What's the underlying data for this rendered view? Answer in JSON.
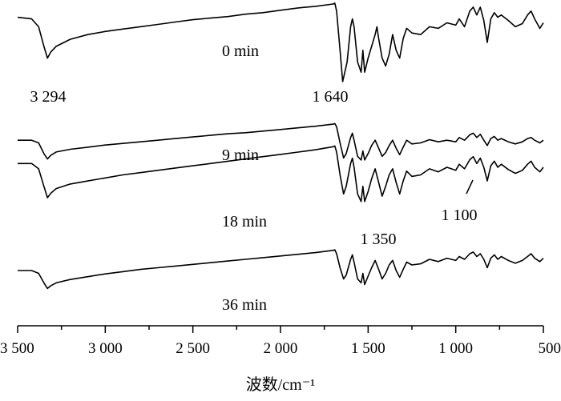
{
  "chart_data": {
    "type": "line",
    "xlabel": "波数/cm⁻¹",
    "ylabel": "",
    "xlim": [
      3500,
      500
    ],
    "x_ticks": [
      3500,
      3000,
      2500,
      2000,
      1500,
      1000,
      500
    ],
    "x_tick_labels": [
      "3 500",
      "3 000",
      "2 500",
      "2 000",
      "1 500",
      "1 000",
      "500"
    ],
    "series": [
      {
        "name": "0 min",
        "points": [
          [
            3500,
            0.82
          ],
          [
            3420,
            0.8
          ],
          [
            3380,
            0.7
          ],
          [
            3350,
            0.45
          ],
          [
            3330,
            0.3
          ],
          [
            3310,
            0.38
          ],
          [
            3280,
            0.45
          ],
          [
            3200,
            0.54
          ],
          [
            3100,
            0.6
          ],
          [
            3000,
            0.64
          ],
          [
            2900,
            0.67
          ],
          [
            2800,
            0.7
          ],
          [
            2700,
            0.73
          ],
          [
            2600,
            0.76
          ],
          [
            2500,
            0.79
          ],
          [
            2400,
            0.81
          ],
          [
            2300,
            0.83
          ],
          [
            2200,
            0.86
          ],
          [
            2100,
            0.88
          ],
          [
            2000,
            0.91
          ],
          [
            1900,
            0.94
          ],
          [
            1800,
            0.96
          ],
          [
            1700,
            0.99
          ],
          [
            1690,
            1.0
          ],
          [
            1680,
            0.9
          ],
          [
            1660,
            0.4
          ],
          [
            1645,
            0.0
          ],
          [
            1630,
            0.15
          ],
          [
            1620,
            0.25
          ],
          [
            1600,
            0.7
          ],
          [
            1590,
            0.8
          ],
          [
            1580,
            0.7
          ],
          [
            1560,
            0.25
          ],
          [
            1540,
            0.12
          ],
          [
            1530,
            0.4
          ],
          [
            1520,
            0.12
          ],
          [
            1500,
            0.3
          ],
          [
            1480,
            0.45
          ],
          [
            1460,
            0.6
          ],
          [
            1450,
            0.7
          ],
          [
            1440,
            0.55
          ],
          [
            1420,
            0.3
          ],
          [
            1400,
            0.2
          ],
          [
            1380,
            0.35
          ],
          [
            1360,
            0.6
          ],
          [
            1340,
            0.4
          ],
          [
            1320,
            0.3
          ],
          [
            1300,
            0.55
          ],
          [
            1280,
            0.68
          ],
          [
            1250,
            0.62
          ],
          [
            1200,
            0.6
          ],
          [
            1150,
            0.7
          ],
          [
            1100,
            0.68
          ],
          [
            1050,
            0.75
          ],
          [
            1000,
            0.72
          ],
          [
            980,
            0.8
          ],
          [
            950,
            0.7
          ],
          [
            920,
            0.9
          ],
          [
            900,
            0.95
          ],
          [
            880,
            0.85
          ],
          [
            860,
            0.95
          ],
          [
            840,
            0.78
          ],
          [
            820,
            0.5
          ],
          [
            800,
            0.8
          ],
          [
            780,
            0.88
          ],
          [
            760,
            0.82
          ],
          [
            740,
            0.85
          ],
          [
            700,
            0.78
          ],
          [
            660,
            0.7
          ],
          [
            620,
            0.74
          ],
          [
            590,
            0.85
          ],
          [
            570,
            0.9
          ],
          [
            550,
            0.8
          ],
          [
            520,
            0.68
          ],
          [
            500,
            0.75
          ]
        ]
      },
      {
        "name": "9 min",
        "points": [
          [
            3500,
            0.55
          ],
          [
            3420,
            0.55
          ],
          [
            3380,
            0.5
          ],
          [
            3350,
            0.3
          ],
          [
            3330,
            0.2
          ],
          [
            3310,
            0.27
          ],
          [
            3280,
            0.33
          ],
          [
            3200,
            0.38
          ],
          [
            3100,
            0.42
          ],
          [
            3000,
            0.46
          ],
          [
            2900,
            0.49
          ],
          [
            2800,
            0.52
          ],
          [
            2700,
            0.55
          ],
          [
            2600,
            0.58
          ],
          [
            2500,
            0.61
          ],
          [
            2400,
            0.64
          ],
          [
            2300,
            0.67
          ],
          [
            2200,
            0.69
          ],
          [
            2100,
            0.72
          ],
          [
            2000,
            0.75
          ],
          [
            1900,
            0.78
          ],
          [
            1800,
            0.81
          ],
          [
            1700,
            0.85
          ],
          [
            1690,
            0.86
          ],
          [
            1680,
            0.8
          ],
          [
            1660,
            0.5
          ],
          [
            1640,
            0.22
          ],
          [
            1625,
            0.3
          ],
          [
            1600,
            0.6
          ],
          [
            1590,
            0.68
          ],
          [
            1580,
            0.55
          ],
          [
            1560,
            0.25
          ],
          [
            1540,
            0.18
          ],
          [
            1530,
            0.35
          ],
          [
            1520,
            0.18
          ],
          [
            1500,
            0.3
          ],
          [
            1480,
            0.45
          ],
          [
            1460,
            0.55
          ],
          [
            1440,
            0.4
          ],
          [
            1420,
            0.25
          ],
          [
            1400,
            0.32
          ],
          [
            1380,
            0.45
          ],
          [
            1360,
            0.55
          ],
          [
            1340,
            0.4
          ],
          [
            1320,
            0.28
          ],
          [
            1300,
            0.42
          ],
          [
            1280,
            0.55
          ],
          [
            1250,
            0.48
          ],
          [
            1200,
            0.5
          ],
          [
            1150,
            0.56
          ],
          [
            1100,
            0.52
          ],
          [
            1050,
            0.55
          ],
          [
            1000,
            0.52
          ],
          [
            980,
            0.6
          ],
          [
            950,
            0.55
          ],
          [
            920,
            0.65
          ],
          [
            900,
            0.68
          ],
          [
            880,
            0.6
          ],
          [
            860,
            0.66
          ],
          [
            840,
            0.55
          ],
          [
            820,
            0.45
          ],
          [
            800,
            0.58
          ],
          [
            780,
            0.62
          ],
          [
            760,
            0.55
          ],
          [
            740,
            0.58
          ],
          [
            700,
            0.52
          ],
          [
            660,
            0.48
          ],
          [
            620,
            0.52
          ],
          [
            590,
            0.58
          ],
          [
            570,
            0.6
          ],
          [
            550,
            0.55
          ],
          [
            520,
            0.5
          ],
          [
            500,
            0.55
          ]
        ]
      },
      {
        "name": "18 min",
        "points": [
          [
            3500,
            0.85
          ],
          [
            3420,
            0.85
          ],
          [
            3380,
            0.78
          ],
          [
            3350,
            0.55
          ],
          [
            3330,
            0.4
          ],
          [
            3310,
            0.46
          ],
          [
            3280,
            0.52
          ],
          [
            3200,
            0.58
          ],
          [
            3100,
            0.62
          ],
          [
            3000,
            0.66
          ],
          [
            2900,
            0.7
          ],
          [
            2800,
            0.73
          ],
          [
            2700,
            0.76
          ],
          [
            2600,
            0.79
          ],
          [
            2500,
            0.82
          ],
          [
            2400,
            0.85
          ],
          [
            2300,
            0.88
          ],
          [
            2200,
            0.91
          ],
          [
            2100,
            0.94
          ],
          [
            2000,
            0.97
          ],
          [
            1900,
            1.0
          ],
          [
            1800,
            1.03
          ],
          [
            1700,
            1.07
          ],
          [
            1690,
            1.08
          ],
          [
            1680,
            1.0
          ],
          [
            1660,
            0.7
          ],
          [
            1640,
            0.45
          ],
          [
            1625,
            0.55
          ],
          [
            1600,
            0.85
          ],
          [
            1590,
            0.92
          ],
          [
            1580,
            0.8
          ],
          [
            1560,
            0.45
          ],
          [
            1540,
            0.35
          ],
          [
            1530,
            0.55
          ],
          [
            1520,
            0.35
          ],
          [
            1500,
            0.48
          ],
          [
            1480,
            0.65
          ],
          [
            1460,
            0.78
          ],
          [
            1440,
            0.6
          ],
          [
            1420,
            0.42
          ],
          [
            1400,
            0.55
          ],
          [
            1380,
            0.7
          ],
          [
            1360,
            0.78
          ],
          [
            1340,
            0.6
          ],
          [
            1320,
            0.45
          ],
          [
            1300,
            0.62
          ],
          [
            1280,
            0.75
          ],
          [
            1250,
            0.68
          ],
          [
            1200,
            0.7
          ],
          [
            1150,
            0.78
          ],
          [
            1100,
            0.74
          ],
          [
            1050,
            0.8
          ],
          [
            1000,
            0.76
          ],
          [
            980,
            0.84
          ],
          [
            950,
            0.78
          ],
          [
            920,
            0.9
          ],
          [
            900,
            0.94
          ],
          [
            880,
            0.85
          ],
          [
            860,
            0.92
          ],
          [
            840,
            0.8
          ],
          [
            820,
            0.62
          ],
          [
            800,
            0.82
          ],
          [
            780,
            0.88
          ],
          [
            760,
            0.8
          ],
          [
            740,
            0.84
          ],
          [
            700,
            0.77
          ],
          [
            660,
            0.72
          ],
          [
            620,
            0.76
          ],
          [
            590,
            0.84
          ],
          [
            570,
            0.88
          ],
          [
            550,
            0.8
          ],
          [
            520,
            0.74
          ],
          [
            500,
            0.8
          ]
        ]
      },
      {
        "name": "36 min",
        "points": [
          [
            3500,
            0.6
          ],
          [
            3420,
            0.6
          ],
          [
            3380,
            0.55
          ],
          [
            3350,
            0.38
          ],
          [
            3330,
            0.28
          ],
          [
            3310,
            0.33
          ],
          [
            3280,
            0.38
          ],
          [
            3200,
            0.44
          ],
          [
            3100,
            0.49
          ],
          [
            3000,
            0.54
          ],
          [
            2900,
            0.58
          ],
          [
            2800,
            0.62
          ],
          [
            2700,
            0.65
          ],
          [
            2600,
            0.68
          ],
          [
            2500,
            0.71
          ],
          [
            2400,
            0.74
          ],
          [
            2300,
            0.77
          ],
          [
            2200,
            0.8
          ],
          [
            2100,
            0.83
          ],
          [
            2000,
            0.86
          ],
          [
            1900,
            0.89
          ],
          [
            1800,
            0.92
          ],
          [
            1700,
            0.96
          ],
          [
            1690,
            0.97
          ],
          [
            1680,
            0.9
          ],
          [
            1660,
            0.65
          ],
          [
            1640,
            0.45
          ],
          [
            1625,
            0.52
          ],
          [
            1600,
            0.8
          ],
          [
            1590,
            0.88
          ],
          [
            1580,
            0.75
          ],
          [
            1560,
            0.45
          ],
          [
            1540,
            0.38
          ],
          [
            1530,
            0.55
          ],
          [
            1520,
            0.35
          ],
          [
            1500,
            0.5
          ],
          [
            1480,
            0.65
          ],
          [
            1460,
            0.78
          ],
          [
            1440,
            0.62
          ],
          [
            1420,
            0.45
          ],
          [
            1400,
            0.55
          ],
          [
            1380,
            0.7
          ],
          [
            1360,
            0.78
          ],
          [
            1340,
            0.6
          ],
          [
            1320,
            0.48
          ],
          [
            1300,
            0.62
          ],
          [
            1280,
            0.75
          ],
          [
            1250,
            0.7
          ],
          [
            1200,
            0.72
          ],
          [
            1150,
            0.8
          ],
          [
            1100,
            0.76
          ],
          [
            1050,
            0.82
          ],
          [
            1000,
            0.78
          ],
          [
            980,
            0.85
          ],
          [
            950,
            0.8
          ],
          [
            920,
            0.9
          ],
          [
            900,
            0.93
          ],
          [
            880,
            0.85
          ],
          [
            860,
            0.9
          ],
          [
            840,
            0.8
          ],
          [
            820,
            0.65
          ],
          [
            800,
            0.82
          ],
          [
            780,
            0.88
          ],
          [
            760,
            0.8
          ],
          [
            740,
            0.85
          ],
          [
            700,
            0.78
          ],
          [
            660,
            0.73
          ],
          [
            620,
            0.78
          ],
          [
            590,
            0.85
          ],
          [
            570,
            0.9
          ],
          [
            550,
            0.82
          ],
          [
            520,
            0.76
          ],
          [
            500,
            0.82
          ]
        ]
      }
    ],
    "annotations": [
      {
        "text": "3 294",
        "x": 3294
      },
      {
        "text": "1 640",
        "x": 1640
      },
      {
        "text": "1 350",
        "x": 1350
      },
      {
        "text": "1 100",
        "x": 1100
      }
    ],
    "grid": false,
    "legend": "none"
  }
}
